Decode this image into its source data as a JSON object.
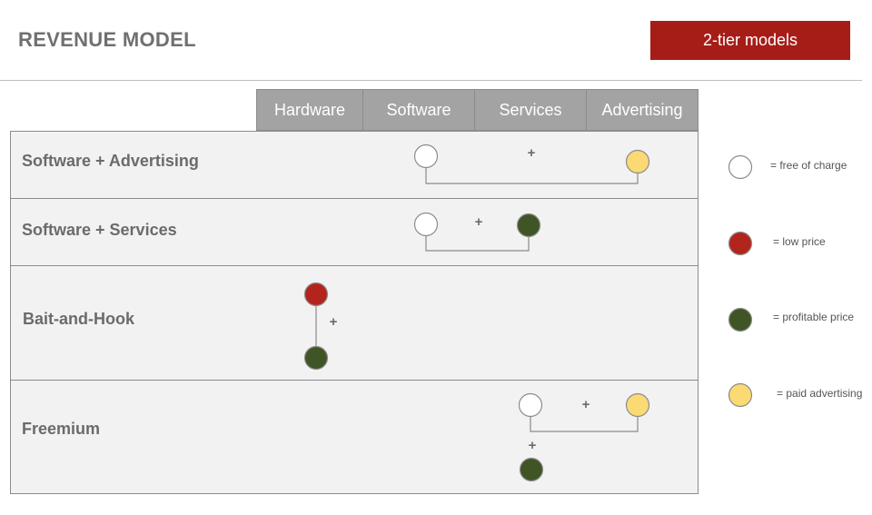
{
  "title": "REVENUE MODEL",
  "badge": "2-tier models",
  "columns": [
    "Hardware",
    "Software",
    "Services",
    "Advertising"
  ],
  "rows": [
    {
      "label": "Software + Advertising"
    },
    {
      "label": "Software + Services"
    },
    {
      "label": "Bait-and-Hook"
    },
    {
      "label": "Freemium"
    }
  ],
  "plus_sign": "+",
  "legend": [
    {
      "label": "= free of charge",
      "color": "#ffffff"
    },
    {
      "label": "= low price",
      "color": "#b3241c"
    },
    {
      "label": "= profitable price",
      "color": "#3f5525"
    },
    {
      "label": "= paid advertising",
      "color": "#fbd973"
    }
  ],
  "colors": {
    "free": "#ffffff",
    "low": "#b3241c",
    "profitable": "#3f5525",
    "advertising": "#fbd973",
    "header_bg": "#a3a3a3",
    "badge_bg": "#a61d18",
    "row_bg": "#f2f2f2"
  }
}
